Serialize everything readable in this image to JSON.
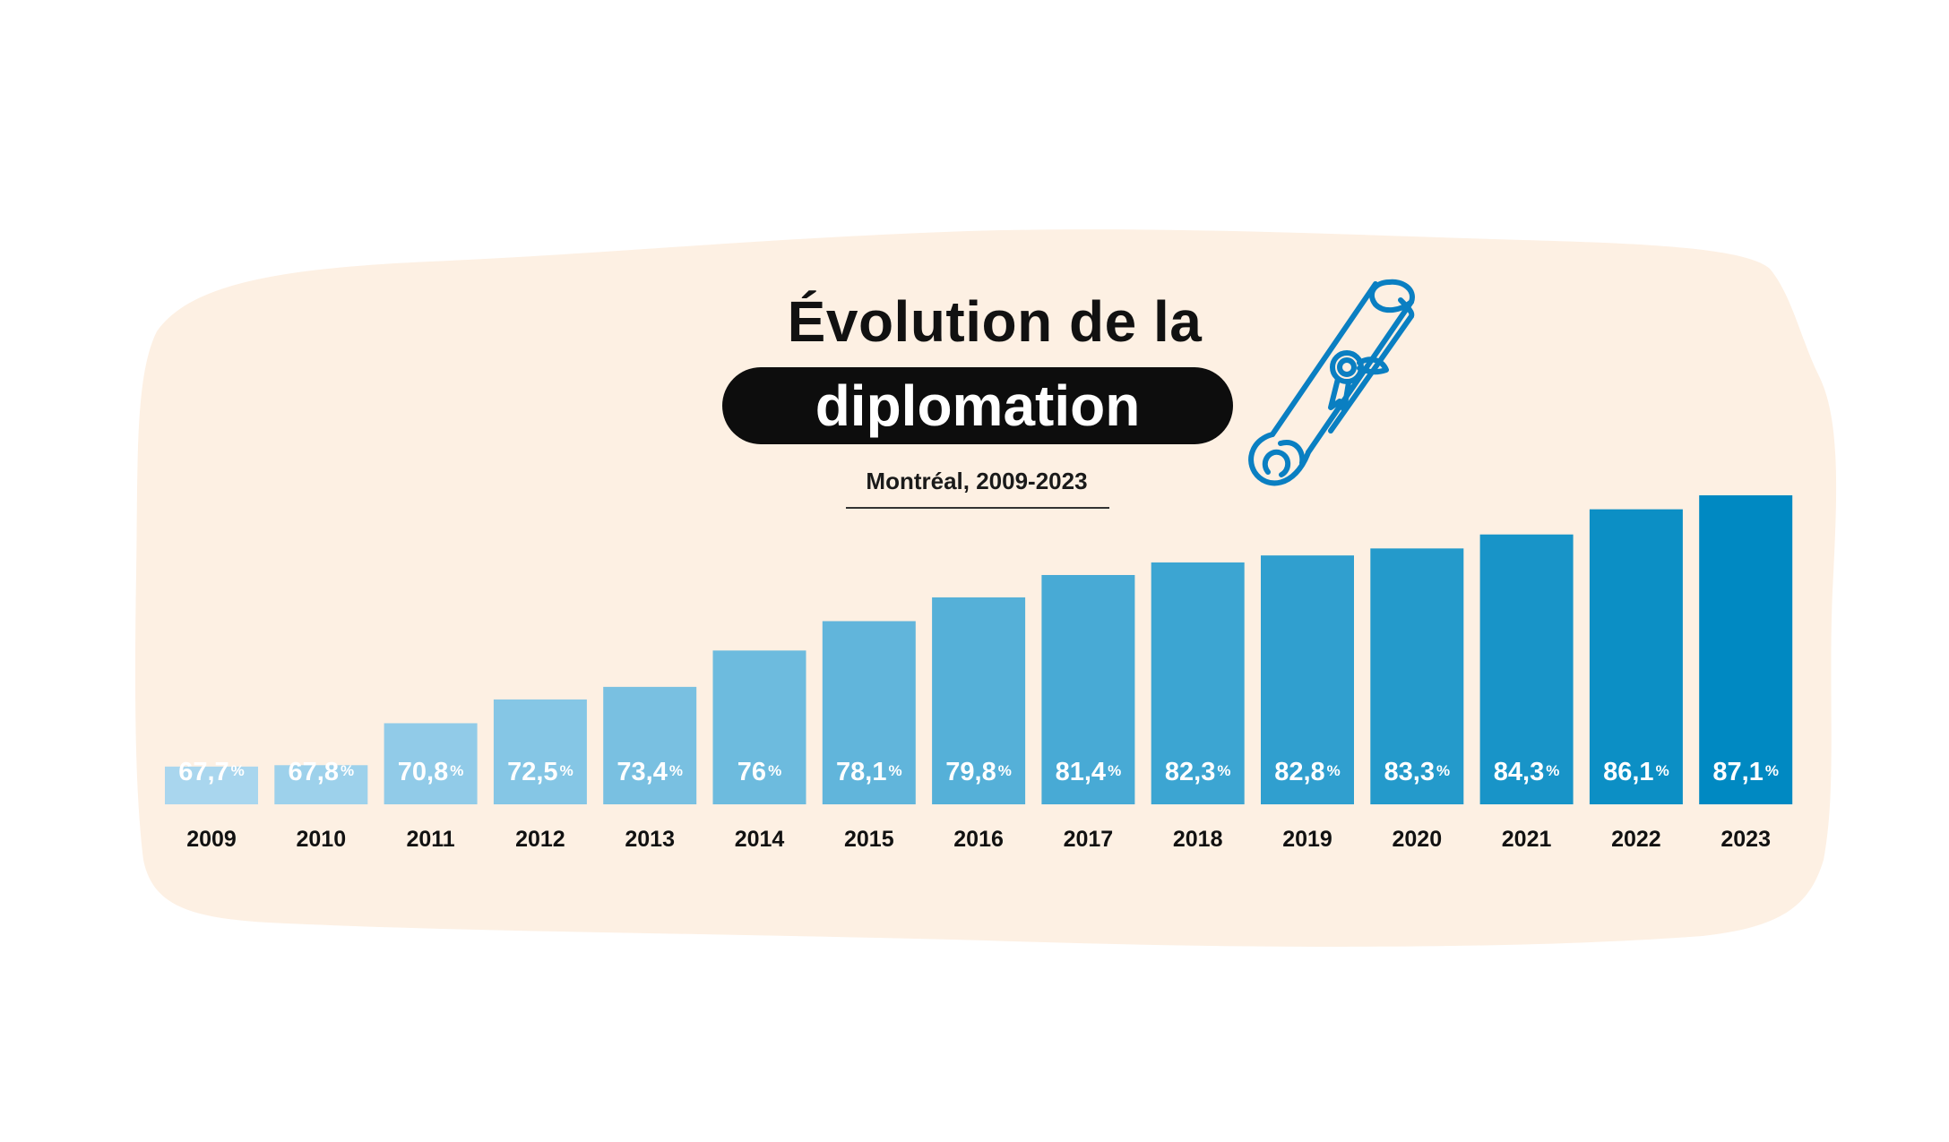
{
  "colors": {
    "background": "#ffffff",
    "blob": "#fdf0e3",
    "text": "#111111",
    "bar_light": "#a9d6ee",
    "bar_dark": "#0089c2",
    "icon": "#0a7fc2"
  },
  "header": {
    "title_line1": "Évolution de la",
    "title_line2": "diplomation",
    "subtitle": "Montréal, 2009-2023"
  },
  "chart_data": {
    "type": "bar",
    "title": "Évolution de la diplomation",
    "subtitle": "Montréal, 2009-2023",
    "xlabel": "",
    "ylabel": "",
    "unit": "%",
    "categories": [
      "2009",
      "2010",
      "2011",
      "2012",
      "2013",
      "2014",
      "2015",
      "2016",
      "2017",
      "2018",
      "2019",
      "2020",
      "2021",
      "2022",
      "2023"
    ],
    "values": [
      67.7,
      67.8,
      70.8,
      72.5,
      73.4,
      76,
      78.1,
      79.8,
      81.4,
      82.3,
      82.8,
      83.3,
      84.3,
      86.1,
      87.1
    ],
    "labels": [
      "67,7",
      "67,8",
      "70,8",
      "72,5",
      "73,4",
      "76",
      "78,1",
      "79,8",
      "81,4",
      "82,3",
      "82,8",
      "83,3",
      "84,3",
      "86,1",
      "87,1"
    ],
    "ylim": [
      65,
      87.1
    ],
    "grid": false,
    "legend": "none",
    "icon": "diploma-scroll-icon"
  }
}
